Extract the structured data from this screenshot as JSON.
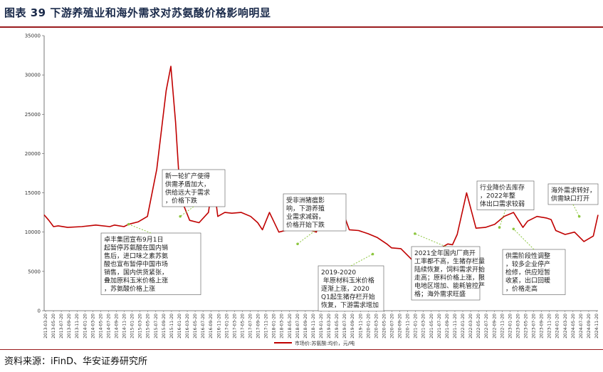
{
  "title": "图表  39  下游养殖业和海外需求对苏氨酸价格影响明显",
  "source": "资料来源：iFinD、华安证券研究所",
  "colors": {
    "series": "#c00000",
    "title_rule": "#9a1b1e",
    "title_text": "#1a2a4a"
  },
  "chart_data": {
    "type": "line",
    "title": "",
    "xlabel": "",
    "ylabel": "",
    "ylim": [
      0,
      35000
    ],
    "yticks": [
      0,
      5000,
      10000,
      15000,
      20000,
      25000,
      30000,
      35000
    ],
    "grid": false,
    "legend_position": "bottom",
    "x_tick_labels": [
      "2013-03-20",
      "2013-05-20",
      "2013-07-20",
      "2013-09-20",
      "2013-11-20",
      "2014-01-20",
      "2014-03-20",
      "2014-05-20",
      "2014-07-20",
      "2014-09-20",
      "2014-11-20",
      "2015-01-20",
      "2015-03-20",
      "2015-05-20",
      "2015-07-20",
      "2015-09-20",
      "2015-11-20",
      "2016-01-20",
      "2016-03-20",
      "2016-05-20",
      "2016-07-20",
      "2016-09-20",
      "2016-11-20",
      "2017-01-20",
      "2017-03-20",
      "2017-05-20",
      "2017-07-20",
      "2017-09-20",
      "2017-11-20",
      "2018-01-20",
      "2018-03-20",
      "2018-05-20",
      "2018-07-20",
      "2018-09-20",
      "2018-11-20",
      "2019-01-20",
      "2019-03-20",
      "2019-05-20",
      "2019-07-20",
      "2019-09-20",
      "2019-11-20",
      "2020-01-20",
      "2020-03-20",
      "2020-05-20",
      "2020-07-20",
      "2020-09-20",
      "2020-11-20",
      "2021-01-20",
      "2021-03-20",
      "2021-05-20",
      "2021-07-20",
      "2021-09-20",
      "2021-11-20",
      "2022-01-20",
      "2022-03-20",
      "2022-05-20",
      "2022-07-20",
      "2022-09-20",
      "2022-11-20",
      "2023-01-20",
      "2023-03-20",
      "2023-05-20",
      "2023-07-20",
      "2023-09-20",
      "2023-11-20",
      "2024-01-20",
      "2024-03-20",
      "2024-05-20",
      "2024-07-20",
      "2024-09-20",
      "2024-11-20"
    ],
    "series": [
      {
        "name": "市场价:苏氨酸:均价，元/吨",
        "color": "#c00000",
        "x": [
          2013.2,
          2013.3,
          2013.4,
          2013.5,
          2013.7,
          2014.0,
          2014.3,
          2014.6,
          2014.7,
          2014.9,
          2015.0,
          2015.2,
          2015.4,
          2015.6,
          2015.8,
          2015.9,
          2016.0,
          2016.1,
          2016.3,
          2016.5,
          2016.7,
          2016.8,
          2016.9,
          2017.05,
          2017.2,
          2017.4,
          2017.6,
          2017.75,
          2017.85,
          2018.0,
          2018.2,
          2018.4,
          2018.6,
          2018.8,
          2019.0,
          2019.2,
          2019.4,
          2019.55,
          2019.7,
          2019.9,
          2020.1,
          2020.3,
          2020.5,
          2020.6,
          2020.8,
          2020.95,
          2021.05,
          2021.15,
          2021.25,
          2021.4,
          2021.6,
          2021.8,
          2021.9,
          2022.0,
          2022.2,
          2022.4,
          2022.6,
          2022.8,
          2023.0,
          2023.2,
          2023.4,
          2023.5,
          2023.7,
          2023.9,
          2024.0,
          2024.1,
          2024.3,
          2024.5,
          2024.7,
          2024.9,
          2025.0
        ],
        "values": [
          12200,
          11500,
          10700,
          10800,
          10600,
          10700,
          10900,
          10700,
          10900,
          10700,
          11000,
          11300,
          12000,
          18000,
          28000,
          31100,
          24000,
          14500,
          11500,
          11200,
          12500,
          16700,
          12000,
          12500,
          12400,
          12500,
          12000,
          11200,
          10300,
          12500,
          10000,
          10300,
          11200,
          10400,
          10000,
          14500,
          12200,
          12800,
          10300,
          10200,
          9800,
          9300,
          8500,
          8000,
          7900,
          7000,
          6400,
          7000,
          7100,
          7700,
          7800,
          8500,
          8400,
          9700,
          15000,
          10500,
          10600,
          11000,
          12000,
          12500,
          10600,
          11400,
          12000,
          11800,
          11600,
          10200,
          9700,
          10000,
          8800,
          9500,
          12200
        ]
      }
    ],
    "annotations": [
      "卓丰集团宣布9月1日起暂停苏氨酸在国内销售后，进口味之素苏氨酸也宣布暂停中国市场销售，国内供货紧张，叠加原料玉米价格上涨，苏氨酸价格上涨",
      "新一轮扩产使得供需矛盾加大，供给远大于需求，价格下跌",
      "受非洲猪瘟影响，下游养殖业需求减弱，价格开始下跌",
      "2019-2020 年原材料玉米价格逐渐上涨，2020Q1起生猪存栏开始恢复，下游需求增加",
      "2021全年国内厂商开工率都不高，生猪存栏量陆续恢复，饲料需求开始走高；原料价格上涨，限电地区增加、能耗管控严格；海外需求旺盛",
      "行业降价去库存，2022年整体出口需求较弱",
      "供需阶段性调整，较多企业停产检修，供应短暂收紧，出口回暖，价格走高",
      "海外需求转好，供需缺口打开"
    ]
  }
}
